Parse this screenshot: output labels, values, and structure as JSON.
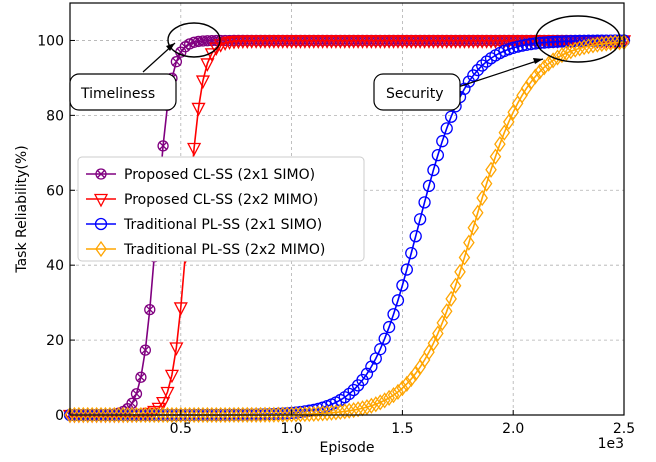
{
  "chart_data": {
    "type": "line",
    "title": "",
    "xlabel": "Episode",
    "ylabel": "Task Reliability(%)",
    "x_scale_label": "1e3",
    "xlim": [
      0,
      2.5
    ],
    "ylim": [
      0,
      110
    ],
    "xticks": [
      0.5,
      1.0,
      1.5,
      2.0,
      2.5
    ],
    "xtick_labels": [
      "0.5",
      "1.0",
      "1.5",
      "2.0",
      "2.5"
    ],
    "yticks": [
      0,
      20,
      40,
      60,
      80,
      100
    ],
    "ytick_labels": [
      "0",
      "20",
      "40",
      "60",
      "80",
      "100"
    ],
    "grid": true,
    "legend_position": "center-left",
    "series": [
      {
        "name": "Proposed CL-SS (2x1 SIMO)",
        "color": "#800080",
        "marker": "x-circle",
        "curve": {
          "type": "logistic",
          "midpoint": 0.39,
          "scale": 0.032,
          "x_start": 0.0,
          "x_end": 2.5,
          "step": 0.02
        }
      },
      {
        "name": "Proposed CL-SS (2x2 MIMO)",
        "color": "#ff0000",
        "marker": "triangle-down",
        "curve": {
          "type": "logistic",
          "midpoint": 0.53,
          "scale": 0.033,
          "x_start": 0.0,
          "x_end": 2.5,
          "step": 0.02
        }
      },
      {
        "name": "Traditional PL-SS (2x1 SIMO)",
        "color": "#0000ff",
        "marker": "circle",
        "curve": {
          "type": "logistic",
          "midpoint": 1.57,
          "scale": 0.11,
          "x_start": 0.0,
          "x_end": 2.5,
          "step": 0.02
        }
      },
      {
        "name": "Traditional PL-SS (2x2 MIMO)",
        "color": "#ffa500",
        "marker": "diamond",
        "curve": {
          "type": "logistic",
          "midpoint": 1.82,
          "scale": 0.125,
          "x_start": 0.0,
          "x_end": 2.5,
          "step": 0.02
        }
      }
    ],
    "annotations": [
      {
        "text": "Timeliness",
        "ellipse_at": [
          0.52,
          100
        ],
        "arrow_to": [
          0.47,
          100
        ]
      },
      {
        "text": "Security",
        "ellipse_at": [
          2.32,
          100
        ],
        "arrow_to": [
          2.14,
          95
        ]
      }
    ]
  }
}
